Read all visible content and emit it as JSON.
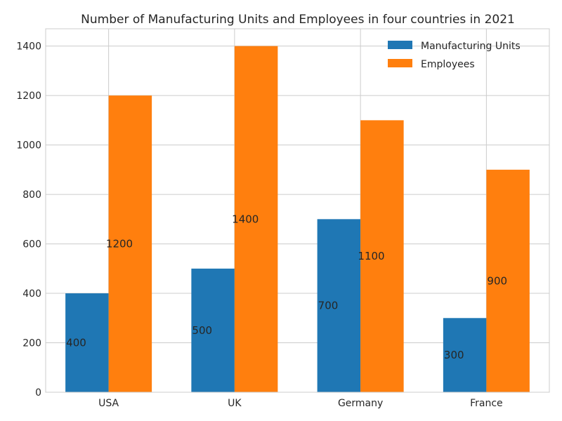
{
  "chart_data": {
    "type": "bar",
    "title": "Number of Manufacturing Units and Employees in four countries in 2021",
    "xlabel": "",
    "ylabel": "",
    "categories": [
      "USA",
      "UK",
      "Germany",
      "France"
    ],
    "series": [
      {
        "name": "Manufacturing Units",
        "values": [
          400,
          500,
          700,
          300
        ],
        "color": "#1f77b4"
      },
      {
        "name": "Employees",
        "values": [
          1200,
          1400,
          1100,
          900
        ],
        "color": "#ff7f0e"
      }
    ],
    "ylim": [
      0,
      1470
    ],
    "yticks": [
      0,
      200,
      400,
      600,
      800,
      1000,
      1200,
      1400
    ],
    "grid": true,
    "legend_position": "top-right",
    "data_labels": true
  }
}
